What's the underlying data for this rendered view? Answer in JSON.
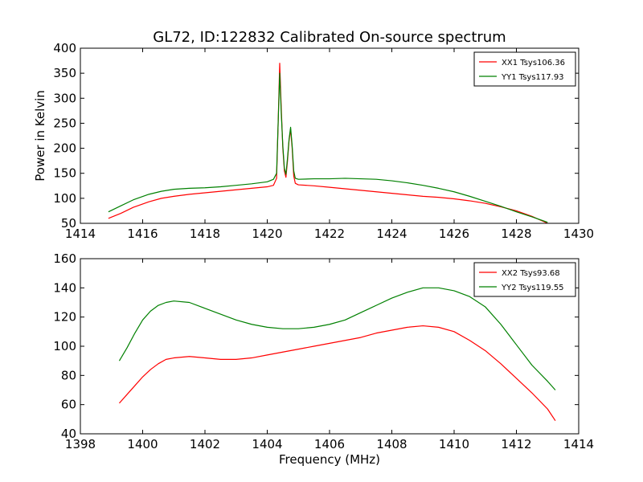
{
  "chart_data": [
    {
      "type": "line",
      "title": "GL72, ID:122832 Calibrated On-source spectrum",
      "xlabel": "",
      "ylabel": "Power in Kelvin",
      "xlim": [
        1414,
        1430
      ],
      "ylim": [
        50,
        400
      ],
      "xticks": [
        1414,
        1416,
        1418,
        1420,
        1422,
        1424,
        1426,
        1428,
        1430
      ],
      "yticks": [
        50,
        100,
        150,
        200,
        250,
        300,
        350,
        400
      ],
      "grid": false,
      "legend": "top-right",
      "series": [
        {
          "name": "XX1 Tsys106.36",
          "color": "#ff0000",
          "x": [
            1414.9,
            1415.3,
            1415.7,
            1416.2,
            1416.6,
            1417.0,
            1417.5,
            1418.0,
            1418.5,
            1419.0,
            1419.5,
            1420.0,
            1420.2,
            1420.3,
            1420.35,
            1420.4,
            1420.45,
            1420.5,
            1420.55,
            1420.6,
            1420.65,
            1420.7,
            1420.75,
            1420.8,
            1420.85,
            1420.9,
            1421.0,
            1421.5,
            1422.0,
            1422.5,
            1423.0,
            1423.5,
            1424.0,
            1424.5,
            1425.0,
            1425.5,
            1426.0,
            1426.5,
            1427.0,
            1427.5,
            1428.0,
            1428.5,
            1429.0
          ],
          "y": [
            60,
            70,
            82,
            93,
            100,
            104,
            108,
            111,
            114,
            117,
            120,
            123,
            126,
            140,
            250,
            370,
            280,
            200,
            155,
            142,
            175,
            215,
            238,
            200,
            145,
            130,
            127,
            125,
            122,
            119,
            116,
            113,
            110,
            107,
            104,
            102,
            99,
            95,
            90,
            83,
            75,
            64,
            50
          ]
        },
        {
          "name": "YY1 Tsys117.93",
          "color": "#008000",
          "x": [
            1414.9,
            1415.3,
            1415.7,
            1416.2,
            1416.6,
            1417.0,
            1417.5,
            1418.0,
            1418.5,
            1419.0,
            1419.5,
            1420.0,
            1420.2,
            1420.3,
            1420.35,
            1420.4,
            1420.45,
            1420.5,
            1420.55,
            1420.6,
            1420.65,
            1420.7,
            1420.75,
            1420.8,
            1420.85,
            1420.9,
            1421.0,
            1421.5,
            1422.0,
            1422.5,
            1423.0,
            1423.5,
            1424.0,
            1424.5,
            1425.0,
            1425.5,
            1426.0,
            1426.5,
            1427.0,
            1427.5,
            1428.0,
            1428.5,
            1429.0
          ],
          "y": [
            73,
            85,
            97,
            108,
            114,
            118,
            120,
            121,
            123,
            126,
            129,
            133,
            138,
            150,
            250,
            350,
            270,
            205,
            160,
            148,
            180,
            218,
            242,
            205,
            155,
            140,
            138,
            139,
            139,
            140,
            139,
            138,
            135,
            131,
            126,
            120,
            113,
            104,
            94,
            84,
            73,
            63,
            52
          ]
        }
      ]
    },
    {
      "type": "line",
      "title": "",
      "xlabel": "Frequency (MHz)",
      "ylabel": "",
      "xlim": [
        1398,
        1414
      ],
      "ylim": [
        40,
        160
      ],
      "xticks": [
        1398,
        1400,
        1402,
        1404,
        1406,
        1408,
        1410,
        1412,
        1414
      ],
      "yticks": [
        40,
        60,
        80,
        100,
        120,
        140,
        160
      ],
      "grid": false,
      "legend": "top-right",
      "series": [
        {
          "name": "XX2 Tsys93.68",
          "color": "#ff0000",
          "x": [
            1399.25,
            1399.5,
            1399.75,
            1400.0,
            1400.25,
            1400.5,
            1400.75,
            1401.0,
            1401.5,
            1402.0,
            1402.5,
            1403.0,
            1403.5,
            1404.0,
            1404.5,
            1405.0,
            1405.5,
            1406.0,
            1406.5,
            1407.0,
            1407.5,
            1408.0,
            1408.5,
            1409.0,
            1409.5,
            1410.0,
            1410.5,
            1411.0,
            1411.5,
            1412.0,
            1412.5,
            1413.0,
            1413.25
          ],
          "y": [
            61,
            67,
            73,
            79,
            84,
            88,
            91,
            92,
            93,
            92,
            91,
            91,
            92,
            94,
            96,
            98,
            100,
            102,
            104,
            106,
            109,
            111,
            113,
            114,
            113,
            110,
            104,
            97,
            88,
            78,
            68,
            57,
            49
          ]
        },
        {
          "name": "YY2 Tsys119.55",
          "color": "#008000",
          "x": [
            1399.25,
            1399.5,
            1399.75,
            1400.0,
            1400.25,
            1400.5,
            1400.75,
            1401.0,
            1401.5,
            1402.0,
            1402.5,
            1403.0,
            1403.5,
            1404.0,
            1404.5,
            1405.0,
            1405.5,
            1406.0,
            1406.5,
            1407.0,
            1407.5,
            1408.0,
            1408.5,
            1409.0,
            1409.5,
            1410.0,
            1410.5,
            1411.0,
            1411.5,
            1412.0,
            1412.5,
            1413.0,
            1413.25
          ],
          "y": [
            90,
            99,
            109,
            118,
            124,
            128,
            130,
            131,
            130,
            126,
            122,
            118,
            115,
            113,
            112,
            112,
            113,
            115,
            118,
            123,
            128,
            133,
            137,
            140,
            140,
            138,
            134,
            127,
            115,
            101,
            87,
            76,
            70
          ]
        }
      ]
    }
  ]
}
